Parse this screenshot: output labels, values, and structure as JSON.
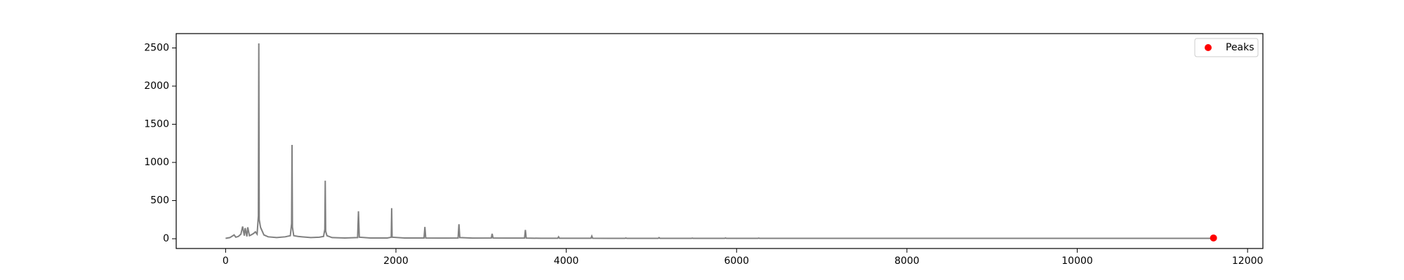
{
  "chart_data": {
    "type": "line",
    "series": [
      {
        "color": "#808080",
        "x": [
          0,
          50,
          100,
          120,
          150,
          180,
          200,
          220,
          230,
          250,
          260,
          280,
          300,
          330,
          350,
          370,
          385,
          390,
          395,
          410,
          450,
          500,
          600,
          700,
          760,
          775,
          780,
          785,
          800,
          850,
          900,
          1000,
          1100,
          1150,
          1165,
          1170,
          1175,
          1190,
          1250,
          1400,
          1550,
          1560,
          1570,
          1700,
          1900,
          1945,
          1950,
          1955,
          2100,
          2330,
          2340,
          2350,
          2500,
          2730,
          2740,
          2750,
          2900,
          3120,
          3130,
          3140,
          3300,
          3510,
          3520,
          3530,
          3700,
          3900,
          3910,
          3920,
          4100,
          4290,
          4300,
          4310,
          4500,
          4690,
          4700,
          4710,
          5080,
          5090,
          5100,
          5470,
          5480,
          5490,
          5860,
          5870,
          5880,
          6250,
          6260,
          6270,
          7000,
          8000,
          9000,
          10000,
          11000,
          11600
        ],
        "values": [
          5,
          15,
          50,
          20,
          30,
          60,
          160,
          40,
          140,
          30,
          150,
          40,
          50,
          70,
          90,
          60,
          300,
          2560,
          250,
          150,
          50,
          25,
          15,
          25,
          40,
          200,
          1230,
          150,
          40,
          30,
          25,
          15,
          20,
          30,
          120,
          760,
          100,
          40,
          15,
          10,
          15,
          360,
          20,
          10,
          10,
          20,
          400,
          20,
          10,
          10,
          155,
          10,
          8,
          10,
          190,
          15,
          8,
          10,
          65,
          10,
          8,
          8,
          115,
          8,
          6,
          6,
          25,
          6,
          6,
          6,
          35,
          6,
          5,
          5,
          10,
          5,
          5,
          15,
          5,
          5,
          8,
          5,
          5,
          10,
          5,
          5,
          8,
          5,
          5,
          5,
          5,
          5,
          5,
          5
        ]
      },
      {
        "name": "Peaks",
        "type": "scatter",
        "color": "#ff0000",
        "x": [
          11600
        ],
        "values": [
          10
        ]
      }
    ],
    "xlim": [
      -580,
      12180
    ],
    "xticks": [
      0,
      2000,
      4000,
      6000,
      8000,
      10000,
      12000
    ],
    "ylim": [
      -128,
      2688
    ],
    "yticks": [
      0,
      500,
      1000,
      1500,
      2000,
      2500
    ],
    "legend": "upper right"
  }
}
